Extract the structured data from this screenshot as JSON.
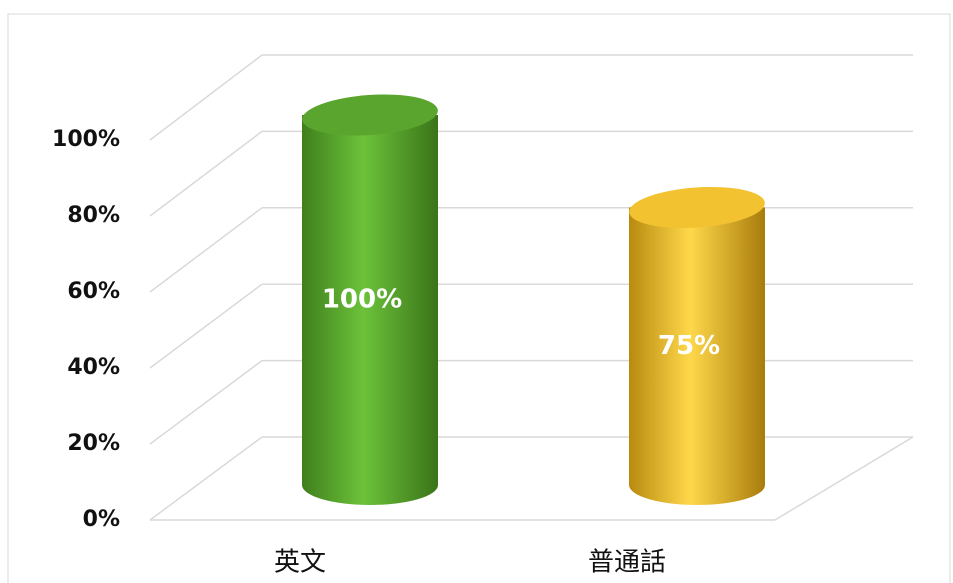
{
  "chart_data": {
    "type": "bar3d",
    "categories": [
      "英文",
      "普通話"
    ],
    "values": [
      100,
      75
    ],
    "value_labels": [
      "100%",
      "75%"
    ],
    "colors": [
      "#5aa52e",
      "#f2c230"
    ],
    "ylim": [
      0,
      100
    ],
    "yticks": [
      {
        "value": 0,
        "label": "0%"
      },
      {
        "value": 20,
        "label": "20%"
      },
      {
        "value": 40,
        "label": "40%"
      },
      {
        "value": 60,
        "label": "60%"
      },
      {
        "value": 80,
        "label": "80%"
      },
      {
        "value": 100,
        "label": "100%"
      }
    ],
    "grid": true
  }
}
